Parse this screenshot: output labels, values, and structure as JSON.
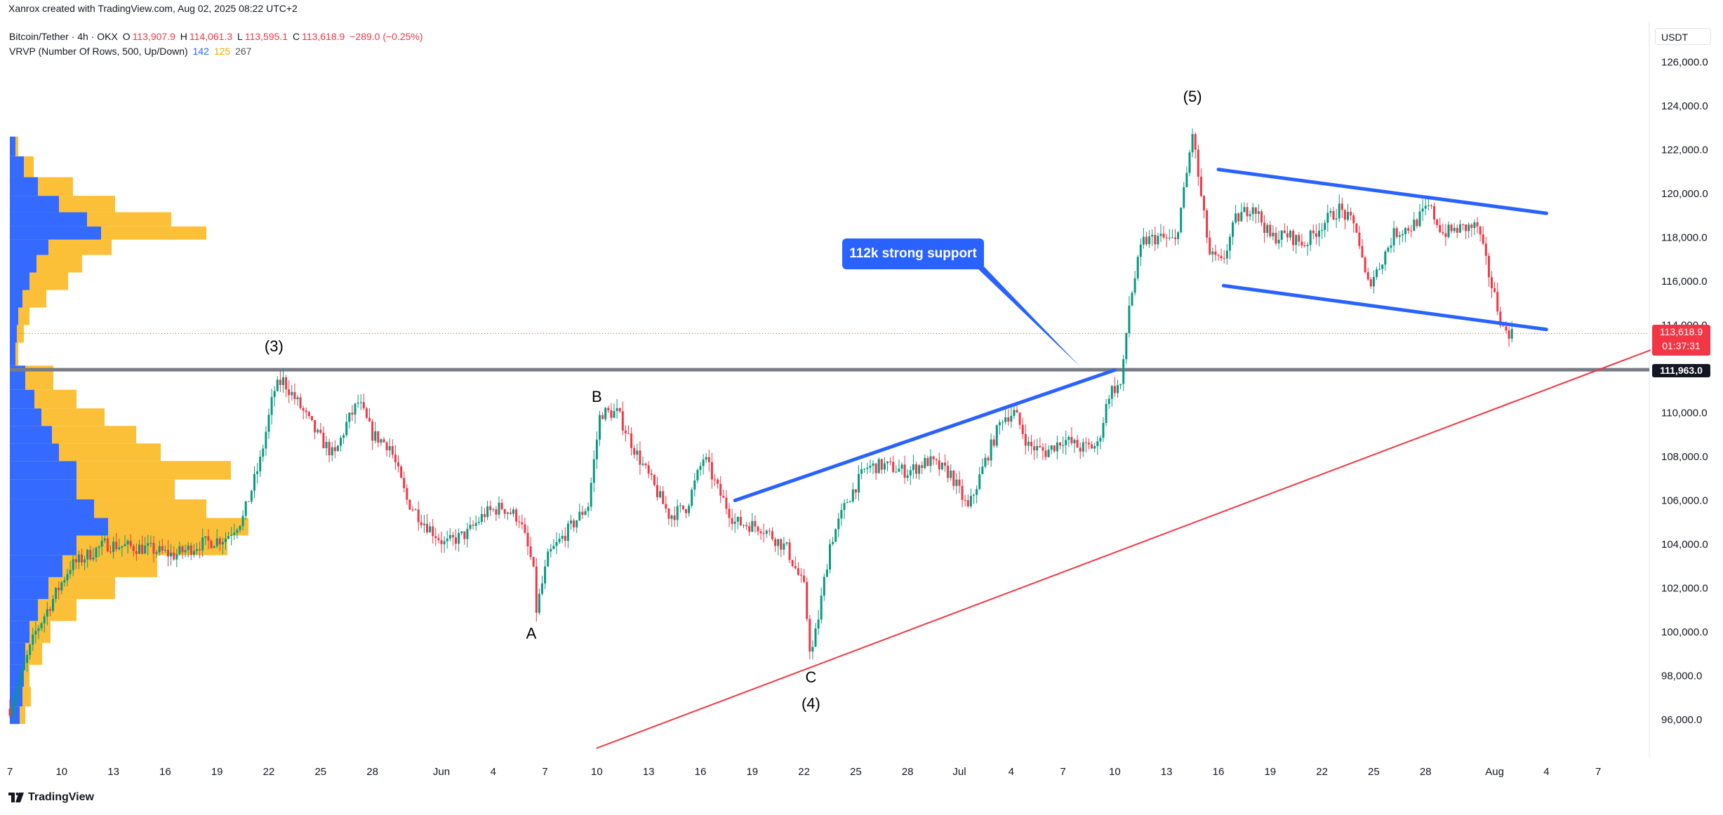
{
  "header": {
    "created_by": "Xanrox created with TradingView.com, Aug 02, 2025 08:22 UTC+2",
    "symbol": "Bitcoin/Tether · 4h · OKX",
    "o_label": "O",
    "o_value": "113,907.9",
    "h_label": "H",
    "h_value": "114,061.3",
    "l_label": "L",
    "l_value": "113,595.1",
    "c_label": "C",
    "c_value": "113,618.9",
    "change": "−289.0 (−0.25%)",
    "indicator": "VRVP (Number Of Rows, 500, Up/Down)",
    "ind_up": "142",
    "ind_down": "125",
    "ind_total": "267"
  },
  "currency_button": "USDT",
  "callout_text": "112k strong support",
  "price_box": {
    "price": "113,618.9",
    "countdown": "01:37:31"
  },
  "level_box": "111,963.0",
  "footer": {
    "brand": "TradingView"
  },
  "colors": {
    "up": "#089981",
    "down": "#f23645",
    "channel": "#2962ff",
    "trend": "#f23645",
    "vol_up": "#2962ff",
    "vol_down": "#fbbd2d",
    "level": "#787b86"
  },
  "chart_data": {
    "type": "candlestick",
    "symbol": "Bitcoin/Tether",
    "interval": "4h",
    "exchange": "OKX",
    "ylim": [
      94500,
      127500
    ],
    "y_ticks": [
      {
        "value": 96000,
        "label": "96,000.0"
      },
      {
        "value": 98000,
        "label": "98,000.0"
      },
      {
        "value": 100000,
        "label": "100,000.0"
      },
      {
        "value": 102000,
        "label": "102,000.0"
      },
      {
        "value": 104000,
        "label": "104,000.0"
      },
      {
        "value": 106000,
        "label": "106,000.0"
      },
      {
        "value": 108000,
        "label": "108,000.0"
      },
      {
        "value": 110000,
        "label": "110,000.0"
      },
      {
        "value": 112000,
        "label": "112,000.0"
      },
      {
        "value": 114000,
        "label": "114,000.0"
      },
      {
        "value": 116000,
        "label": "116,000.0"
      },
      {
        "value": 118000,
        "label": "118,000.0"
      },
      {
        "value": 120000,
        "label": "120,000.0"
      },
      {
        "value": 122000,
        "label": "122,000.0"
      },
      {
        "value": 124000,
        "label": "124,000.0"
      },
      {
        "value": 126000,
        "label": "126,000.0"
      }
    ],
    "x_day_start": "2025-05-07",
    "x_ticks": [
      {
        "day": 0,
        "label": "7"
      },
      {
        "day": 3,
        "label": "10"
      },
      {
        "day": 6,
        "label": "13"
      },
      {
        "day": 9,
        "label": "16"
      },
      {
        "day": 12,
        "label": "19"
      },
      {
        "day": 15,
        "label": "22"
      },
      {
        "day": 18,
        "label": "25"
      },
      {
        "day": 21,
        "label": "28"
      },
      {
        "day": 25,
        "label": "Jun"
      },
      {
        "day": 28,
        "label": "4"
      },
      {
        "day": 31,
        "label": "7"
      },
      {
        "day": 34,
        "label": "10"
      },
      {
        "day": 37,
        "label": "13"
      },
      {
        "day": 40,
        "label": "16"
      },
      {
        "day": 43,
        "label": "19"
      },
      {
        "day": 46,
        "label": "22"
      },
      {
        "day": 49,
        "label": "25"
      },
      {
        "day": 52,
        "label": "28"
      },
      {
        "day": 55,
        "label": "Jul"
      },
      {
        "day": 58,
        "label": "4"
      },
      {
        "day": 61,
        "label": "7"
      },
      {
        "day": 64,
        "label": "10"
      },
      {
        "day": 67,
        "label": "13"
      },
      {
        "day": 70,
        "label": "16"
      },
      {
        "day": 73,
        "label": "19"
      },
      {
        "day": 76,
        "label": "22"
      },
      {
        "day": 79,
        "label": "25"
      },
      {
        "day": 82,
        "label": "28"
      },
      {
        "day": 86,
        "label": "Aug"
      },
      {
        "day": 89,
        "label": "4"
      },
      {
        "day": 92,
        "label": "7"
      }
    ],
    "price_path": [
      [
        0,
        96500
      ],
      [
        1.5,
        100000
      ],
      [
        3.5,
        103000
      ],
      [
        5.5,
        104000
      ],
      [
        8,
        103800
      ],
      [
        9.5,
        103500
      ],
      [
        11,
        104000
      ],
      [
        12.5,
        104300
      ],
      [
        13.5,
        105200
      ],
      [
        14.5,
        107800
      ],
      [
        15.3,
        111000
      ],
      [
        15.8,
        111500
      ],
      [
        16.8,
        110300
      ],
      [
        17.8,
        109000
      ],
      [
        18.8,
        108000
      ],
      [
        19.5,
        109500
      ],
      [
        20.2,
        110500
      ],
      [
        21,
        109000
      ],
      [
        22,
        108500
      ],
      [
        23,
        106000
      ],
      [
        24,
        105000
      ],
      [
        25.2,
        104000
      ],
      [
        26.5,
        104500
      ],
      [
        27.5,
        105400
      ],
      [
        28.5,
        105700
      ],
      [
        29.5,
        105200
      ],
      [
        30.3,
        103000
      ],
      [
        30.5,
        101000
      ],
      [
        31.2,
        103500
      ],
      [
        32.5,
        104800
      ],
      [
        33.5,
        105800
      ],
      [
        34.2,
        110000
      ],
      [
        35.2,
        110000
      ],
      [
        36.2,
        108300
      ],
      [
        37.2,
        106800
      ],
      [
        38.2,
        105300
      ],
      [
        39.2,
        105700
      ],
      [
        40.2,
        108000
      ],
      [
        41,
        106500
      ],
      [
        42,
        105000
      ],
      [
        43.5,
        104800
      ],
      [
        45,
        103800
      ],
      [
        46,
        102000
      ],
      [
        46.4,
        98800
      ],
      [
        46.8,
        100500
      ],
      [
        47.5,
        104000
      ],
      [
        48.5,
        106000
      ],
      [
        49.6,
        107500
      ],
      [
        50.6,
        107600
      ],
      [
        52,
        107300
      ],
      [
        53.2,
        107800
      ],
      [
        54.5,
        107200
      ],
      [
        55.5,
        105600
      ],
      [
        56.5,
        107800
      ],
      [
        57.5,
        109800
      ],
      [
        58.2,
        110000
      ],
      [
        59,
        108500
      ],
      [
        60,
        108200
      ],
      [
        61,
        108800
      ],
      [
        62,
        108400
      ],
      [
        63,
        108500
      ],
      [
        63.7,
        111000
      ],
      [
        64.4,
        111300
      ],
      [
        64.8,
        114800
      ],
      [
        65.6,
        117800
      ],
      [
        66.5,
        118000
      ],
      [
        67.5,
        117800
      ],
      [
        68.1,
        120500
      ],
      [
        68.5,
        122800
      ],
      [
        69,
        119800
      ],
      [
        69.5,
        117200
      ],
      [
        70.2,
        116800
      ],
      [
        71,
        118800
      ],
      [
        72,
        119500
      ],
      [
        73,
        118000
      ],
      [
        74,
        118100
      ],
      [
        75,
        117700
      ],
      [
        76,
        118600
      ],
      [
        77,
        119300
      ],
      [
        78,
        118400
      ],
      [
        78.6,
        115800
      ],
      [
        79.2,
        116500
      ],
      [
        80.2,
        118200
      ],
      [
        81.2,
        118500
      ],
      [
        82.2,
        119400
      ],
      [
        83,
        118200
      ],
      [
        84,
        118400
      ],
      [
        85,
        118500
      ],
      [
        85.7,
        116200
      ],
      [
        86,
        115300
      ],
      [
        86.5,
        113800
      ],
      [
        87,
        113618.9
      ]
    ],
    "volume_profile": {
      "max_px": 270,
      "bands": [
        {
          "price": 96200,
          "up": 14,
          "down": 8
        },
        {
          "price": 97000,
          "up": 18,
          "down": 12
        },
        {
          "price": 98000,
          "up": 20,
          "down": 8
        },
        {
          "price": 99000,
          "up": 22,
          "down": 24
        },
        {
          "price": 100000,
          "up": 28,
          "down": 30
        },
        {
          "price": 101000,
          "up": 40,
          "down": 55
        },
        {
          "price": 102000,
          "up": 55,
          "down": 95
        },
        {
          "price": 103000,
          "up": 75,
          "down": 135
        },
        {
          "price": 104000,
          "up": 95,
          "down": 215
        },
        {
          "price": 104800,
          "up": 140,
          "down": 200
        },
        {
          "price": 105600,
          "up": 120,
          "down": 160
        },
        {
          "price": 106500,
          "up": 95,
          "down": 140
        },
        {
          "price": 107400,
          "up": 95,
          "down": 220
        },
        {
          "price": 108200,
          "up": 70,
          "down": 145
        },
        {
          "price": 109000,
          "up": 60,
          "down": 120
        },
        {
          "price": 109800,
          "up": 45,
          "down": 90
        },
        {
          "price": 110600,
          "up": 35,
          "down": 60
        },
        {
          "price": 111500,
          "up": 22,
          "down": 40
        },
        {
          "price": 112800,
          "up": 8,
          "down": 4
        },
        {
          "price": 113600,
          "up": 10,
          "down": 10
        },
        {
          "price": 114400,
          "up": 12,
          "down": 16
        },
        {
          "price": 115200,
          "up": 18,
          "down": 34
        },
        {
          "price": 116000,
          "up": 28,
          "down": 55
        },
        {
          "price": 116800,
          "up": 38,
          "down": 65
        },
        {
          "price": 117600,
          "up": 55,
          "down": 90
        },
        {
          "price": 118200,
          "up": 130,
          "down": 150
        },
        {
          "price": 118800,
          "up": 110,
          "down": 120
        },
        {
          "price": 119500,
          "up": 70,
          "down": 80
        },
        {
          "price": 120300,
          "up": 40,
          "down": 50
        },
        {
          "price": 121200,
          "up": 20,
          "down": 14
        },
        {
          "price": 122200,
          "up": 8,
          "down": 4
        }
      ]
    },
    "horizontal_level": 111963.0,
    "last_price": 113618.9,
    "channel_upper": {
      "from": [
        70,
        121100
      ],
      "to": [
        89,
        119100
      ]
    },
    "channel_lower": {
      "from": [
        70.3,
        115800
      ],
      "to": [
        89,
        113800
      ]
    },
    "rising_line": {
      "from": [
        42,
        106000
      ],
      "to": [
        64,
        111950
      ]
    },
    "red_trendline": {
      "from": [
        34,
        94700
      ],
      "to": [
        95,
        112850
      ]
    },
    "callout_pointer_to": [
      62,
      112100
    ],
    "wave_labels": [
      {
        "text": "(3)",
        "day": 15.3,
        "price": 112800
      },
      {
        "text": "B",
        "day": 34,
        "price": 110500
      },
      {
        "text": "A",
        "day": 30.2,
        "price": 99700
      },
      {
        "text": "C",
        "day": 46.4,
        "price": 97700
      },
      {
        "text": "(4)",
        "day": 46.4,
        "price": 96500
      },
      {
        "text": "(5)",
        "day": 68.5,
        "price": 124200
      }
    ]
  }
}
